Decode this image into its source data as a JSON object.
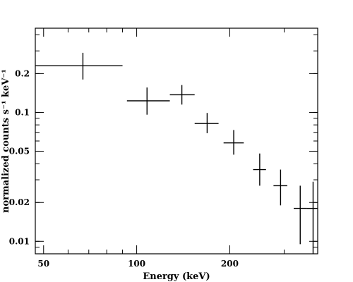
{
  "chart_data": {
    "type": "scatter",
    "title": "",
    "xlabel": "Energy (keV)",
    "ylabel": "normalized counts s⁻¹ keV⁻¹",
    "xscale": "log",
    "yscale": "log",
    "xlim": [
      47,
      385
    ],
    "ylim": [
      0.008,
      0.45
    ],
    "grid": false,
    "x_ticks": [
      {
        "value": 50,
        "label": "50"
      },
      {
        "value": 100,
        "label": "100"
      },
      {
        "value": 200,
        "label": "200"
      }
    ],
    "y_ticks": [
      {
        "value": 0.01,
        "label": "0.01"
      },
      {
        "value": 0.02,
        "label": "0.02"
      },
      {
        "value": 0.05,
        "label": "0.05"
      },
      {
        "value": 0.1,
        "label": "0.1"
      },
      {
        "value": 0.2,
        "label": "0.2"
      }
    ],
    "points": [
      {
        "x": 67,
        "xlo": 47,
        "xhi": 90,
        "y": 0.23,
        "ylo": 0.18,
        "yhi": 0.29
      },
      {
        "x": 108,
        "xlo": 93,
        "xhi": 128,
        "y": 0.123,
        "ylo": 0.096,
        "yhi": 0.156
      },
      {
        "x": 140,
        "xlo": 128,
        "xhi": 154,
        "y": 0.137,
        "ylo": 0.115,
        "yhi": 0.163
      },
      {
        "x": 169,
        "xlo": 154,
        "xhi": 184,
        "y": 0.082,
        "ylo": 0.069,
        "yhi": 0.099
      },
      {
        "x": 206,
        "xlo": 191,
        "xhi": 222,
        "y": 0.058,
        "ylo": 0.047,
        "yhi": 0.073
      },
      {
        "x": 250,
        "xlo": 238,
        "xhi": 262,
        "y": 0.036,
        "ylo": 0.027,
        "yhi": 0.048
      },
      {
        "x": 292,
        "xlo": 277,
        "xhi": 307,
        "y": 0.027,
        "ylo": 0.019,
        "yhi": 0.036
      },
      {
        "x": 338,
        "xlo": 322,
        "xhi": 355,
        "y": 0.018,
        "ylo": 0.0095,
        "yhi": 0.027
      },
      {
        "x": 372,
        "xlo": 355,
        "xhi": 385,
        "y": 0.018,
        "ylo": 0.008,
        "yhi": 0.029
      }
    ]
  }
}
